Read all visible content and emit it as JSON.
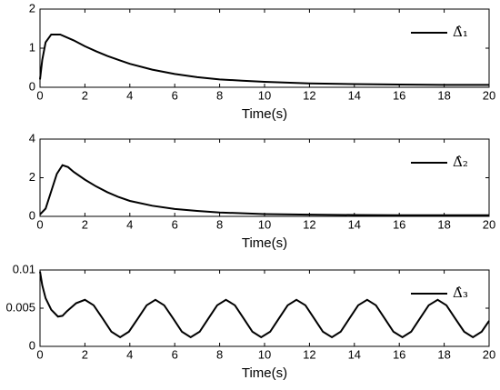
{
  "chart_data": [
    {
      "type": "line",
      "x_label": "Time(s)",
      "xlim": [
        0,
        20
      ],
      "xticks": [
        0,
        2,
        4,
        6,
        8,
        10,
        12,
        14,
        16,
        18,
        20
      ],
      "ylim": [
        0,
        2
      ],
      "yticks": [
        0,
        1,
        2
      ],
      "legend": "upper right",
      "x": [
        0,
        0.1,
        0.25,
        0.5,
        0.9,
        1.5,
        2,
        2.5,
        3,
        3.5,
        4,
        5,
        6,
        7,
        8,
        9,
        10,
        12,
        14,
        16,
        18,
        20
      ],
      "series": [
        {
          "name": "Δ̂₁",
          "color": "#000000",
          "values": [
            0.2,
            0.7,
            1.15,
            1.35,
            1.35,
            1.2,
            1.05,
            0.92,
            0.8,
            0.7,
            0.6,
            0.45,
            0.34,
            0.26,
            0.2,
            0.17,
            0.14,
            0.1,
            0.08,
            0.07,
            0.06,
            0.06
          ]
        }
      ]
    },
    {
      "type": "line",
      "x_label": "Time(s)",
      "xlim": [
        0,
        20
      ],
      "xticks": [
        0,
        2,
        4,
        6,
        8,
        10,
        12,
        14,
        16,
        18,
        20
      ],
      "ylim": [
        0,
        4
      ],
      "yticks": [
        0,
        2,
        4
      ],
      "legend": "upper right",
      "x": [
        0,
        0.25,
        0.5,
        0.75,
        1,
        1.25,
        1.5,
        2,
        2.5,
        3,
        3.5,
        4,
        5,
        6,
        7,
        8,
        10,
        12,
        14,
        16,
        18,
        20
      ],
      "series": [
        {
          "name": "Δ̂₂",
          "color": "#000000",
          "values": [
            0.1,
            0.4,
            1.3,
            2.2,
            2.65,
            2.55,
            2.3,
            1.9,
            1.55,
            1.25,
            1.0,
            0.8,
            0.55,
            0.38,
            0.28,
            0.2,
            0.12,
            0.09,
            0.07,
            0.06,
            0.06,
            0.06
          ]
        }
      ]
    },
    {
      "type": "line",
      "x_label": "Time(s)",
      "xlim": [
        0,
        20
      ],
      "xticks": [
        0,
        2,
        4,
        6,
        8,
        10,
        12,
        14,
        16,
        18,
        20
      ],
      "ylim": [
        0,
        0.01
      ],
      "yticks": [
        0,
        0.005,
        0.01
      ],
      "legend": "upper right",
      "x": [
        0,
        0.1,
        0.25,
        0.5,
        0.8,
        1.0,
        1.2,
        1.61,
        2,
        2.39,
        2.79,
        3.18,
        3.57,
        3.96,
        4.36,
        4.75,
        5.14,
        5.53,
        5.93,
        6.32,
        6.71,
        7.11,
        7.5,
        7.89,
        8.28,
        8.68,
        9.07,
        9.46,
        9.85,
        10.25,
        10.64,
        11.03,
        11.42,
        11.82,
        12.21,
        12.6,
        13.0,
        13.39,
        13.78,
        14.17,
        14.57,
        14.96,
        15.35,
        15.74,
        16.14,
        16.53,
        16.92,
        17.31,
        17.71,
        18.1,
        18.49,
        18.89,
        19.28,
        19.67,
        20
      ],
      "series": [
        {
          "name": "Δ̂₃",
          "color": "#000000",
          "values": [
            0.0098,
            0.008,
            0.0063,
            0.0048,
            0.0039,
            0.004,
            0.0046,
            0.00565,
            0.0061,
            0.00538,
            0.00365,
            0.00192,
            0.0012,
            0.00192,
            0.00365,
            0.00538,
            0.0061,
            0.00538,
            0.00365,
            0.00192,
            0.0012,
            0.00192,
            0.00365,
            0.00538,
            0.0061,
            0.00538,
            0.00365,
            0.00192,
            0.0012,
            0.00192,
            0.00365,
            0.00538,
            0.0061,
            0.00538,
            0.00365,
            0.00192,
            0.0012,
            0.00192,
            0.00365,
            0.00538,
            0.0061,
            0.00538,
            0.00365,
            0.00192,
            0.0012,
            0.00192,
            0.00365,
            0.00538,
            0.0061,
            0.00538,
            0.00365,
            0.00192,
            0.0012,
            0.00192,
            0.00334
          ]
        }
      ]
    }
  ]
}
